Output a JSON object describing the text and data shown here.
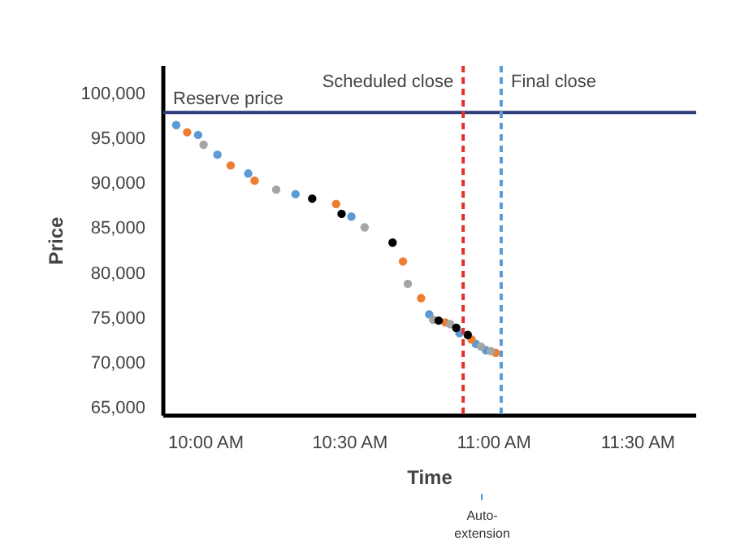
{
  "chart_data": {
    "type": "scatter",
    "xlabel": "Time",
    "ylabel": "Price",
    "xlim": [
      9.85,
      11.7
    ],
    "ylim": [
      64000,
      103000
    ],
    "xticks": [
      {
        "value": 10,
        "label": "10:00 AM"
      },
      {
        "value": 10.5,
        "label": "10:30 AM"
      },
      {
        "value": 11,
        "label": "11:00 AM"
      },
      {
        "value": 11.5,
        "label": "11:30 AM"
      }
    ],
    "yticks": [
      {
        "value": 65000,
        "label": "65,000"
      },
      {
        "value": 70000,
        "label": "70,000"
      },
      {
        "value": 75000,
        "label": "75,000"
      },
      {
        "value": 80000,
        "label": "80,000"
      },
      {
        "value": 85000,
        "label": "85,000"
      },
      {
        "value": 90000,
        "label": "90,000"
      },
      {
        "value": 95000,
        "label": "95,000"
      },
      {
        "value": 100000,
        "label": "100,000"
      }
    ],
    "grid": false,
    "marker": "circle",
    "series": [
      {
        "color": "#5b9bd5",
        "x": [
          9.895,
          9.971,
          10.038,
          10.145,
          10.309,
          10.503,
          10.773,
          10.878,
          10.935,
          10.97
        ],
        "values": [
          96400,
          95300,
          93100,
          91000,
          88700,
          86200,
          75300,
          73200,
          72000,
          71300
        ]
      },
      {
        "color": "#ed7d31",
        "x": [
          9.933,
          10.084,
          10.167,
          10.45,
          10.682,
          10.745,
          10.829,
          10.92,
          11.004
        ],
        "values": [
          95600,
          91900,
          90200,
          87600,
          81200,
          77100,
          74400,
          72500,
          71000
        ]
      },
      {
        "color": "#a5a5a5",
        "x": [
          9.99,
          10.242,
          10.549,
          10.699,
          10.787,
          10.846,
          10.953,
          10.987
        ],
        "values": [
          94200,
          89200,
          85000,
          78700,
          74700,
          74200,
          71700,
          71200
        ]
      },
      {
        "color": "#000000",
        "x": [
          10.367,
          10.469,
          10.646,
          10.806,
          10.867,
          10.907
        ],
        "values": [
          88200,
          86500,
          83300,
          74600,
          73800,
          73000
        ]
      }
    ],
    "ref_lines": [
      {
        "axis": "y",
        "value": 97800,
        "label": "Reserve price",
        "color": "#2e3a78",
        "line_style": "solid"
      },
      {
        "axis": "x",
        "value": 10.891,
        "label": "Scheduled close",
        "color": "#e0312b",
        "line_style": "dashed"
      },
      {
        "axis": "x",
        "value": 11.023,
        "label": "Final close",
        "color": "#5b9bd5",
        "line_style": "dashed"
      }
    ],
    "annotations": [
      "Auto-extension"
    ]
  }
}
